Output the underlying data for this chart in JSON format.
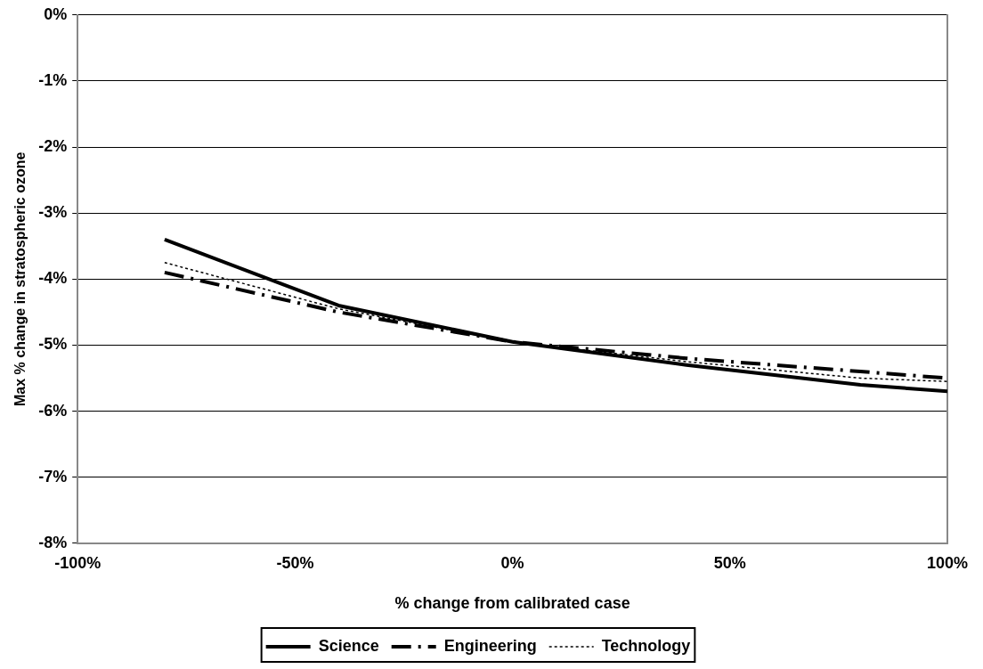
{
  "chart_data": {
    "type": "line",
    "xlabel": "% change from calibrated case",
    "ylabel": "Max % change in stratospheric ozone",
    "x": [
      -80,
      -40,
      0,
      40,
      80,
      100
    ],
    "series": [
      {
        "name": "Science",
        "color": "#000000",
        "line_style": "solid",
        "values": [
          -3.4,
          -4.4,
          -4.95,
          -5.3,
          -5.6,
          -5.7
        ]
      },
      {
        "name": "Engineering",
        "color": "#000000",
        "line_style": "dashed",
        "values": [
          -3.9,
          -4.5,
          -4.95,
          -5.2,
          -5.4,
          -5.5
        ]
      },
      {
        "name": "Technology",
        "color": "#000000",
        "line_style": "dotted",
        "values": [
          -3.75,
          -4.45,
          -4.95,
          -5.25,
          -5.5,
          -5.55
        ]
      }
    ],
    "xlim": [
      -100,
      100
    ],
    "xticks": [
      {
        "value": -100,
        "label": "-100%"
      },
      {
        "value": -50,
        "label": "-50%"
      },
      {
        "value": 0,
        "label": "0%"
      },
      {
        "value": 50,
        "label": "50%"
      },
      {
        "value": 100,
        "label": "100%"
      }
    ],
    "ylim": [
      -8,
      0
    ],
    "yticks": [
      {
        "value": -8,
        "label": "-8%"
      },
      {
        "value": -7,
        "label": "-7%"
      },
      {
        "value": -6,
        "label": "-6%"
      },
      {
        "value": -5,
        "label": "-5%"
      },
      {
        "value": -4,
        "label": "-4%"
      },
      {
        "value": -3,
        "label": "-3%"
      },
      {
        "value": -2,
        "label": "-2%"
      },
      {
        "value": -1,
        "label": "-1%"
      },
      {
        "value": 0,
        "label": "0%"
      }
    ],
    "grid": "y",
    "legend": "bottom",
    "marker": "none"
  }
}
